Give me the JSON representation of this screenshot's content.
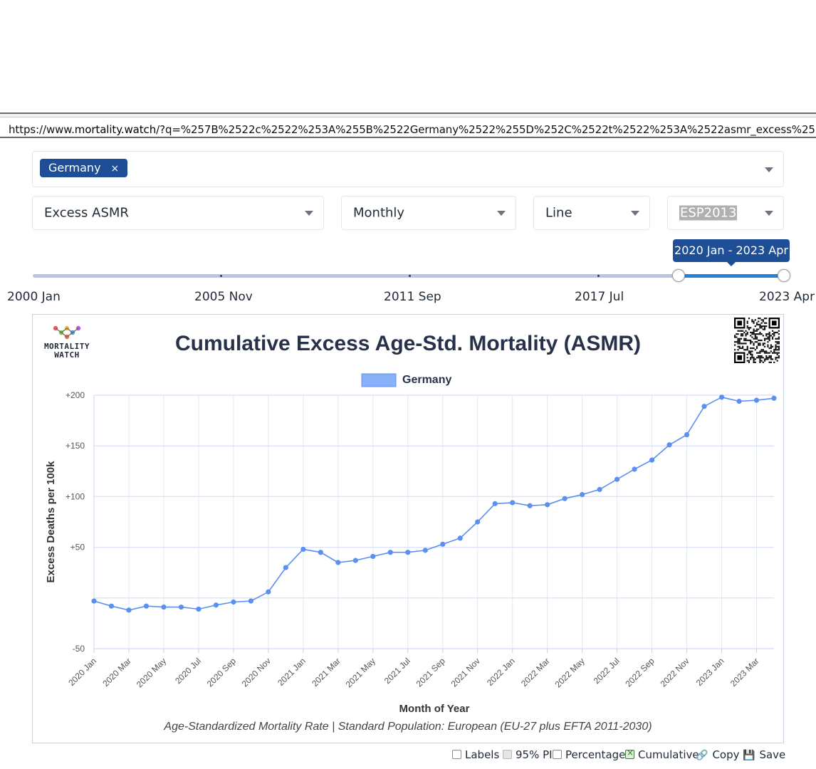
{
  "browser": {
    "url_prefix": "https://www.",
    "url_domain": "mortality.watch",
    "url_rest": "/?q=%257B%2522c%2522%253A%255B%2522Germany%2522%255D%252C%2522t%2522%253A%2522asmr_excess%2522%252C%25"
  },
  "controls": {
    "country_chip": "Germany",
    "chip_remove": "×",
    "metric": "Excess ASMR",
    "period": "Monthly",
    "chart_type": "Line",
    "standard_population": "ESP2013"
  },
  "slider": {
    "tooltip": "2020 Jan - 2023 Apr",
    "labels": [
      "2000 Jan",
      "2005 Nov",
      "2011 Sep",
      "2017 Jul",
      "2023 Apr"
    ],
    "range_fraction": [
      0.8606,
      1.0
    ],
    "colors": {
      "track": "#bac4e8",
      "selected": "#2380e0"
    }
  },
  "logo": {
    "line1": "MORTALITY",
    "line2": "WATCH"
  },
  "chart_data": {
    "type": "line",
    "title": "Cumulative Excess Age-Std. Mortality (ASMR)",
    "subtitle": "Age-Standardized Mortality Rate | Standard Population: European (EU-27 plus EFTA 2011-2030)",
    "xlabel": "Month of Year",
    "ylabel": "Excess Deaths per 100k",
    "legend": {
      "position": "top-center"
    },
    "ylim": [
      -50,
      200
    ],
    "yticks": [
      {
        "value": 200,
        "label": "+200"
      },
      {
        "value": 150,
        "label": "+150"
      },
      {
        "value": 100,
        "label": "+100"
      },
      {
        "value": 50,
        "label": "+50"
      },
      {
        "value": 0,
        "label": ""
      },
      {
        "value": -50,
        "label": "-50"
      }
    ],
    "x": [
      "2020 Jan",
      "2020 Feb",
      "2020 Mar",
      "2020 Apr",
      "2020 May",
      "2020 Jun",
      "2020 Jul",
      "2020 Aug",
      "2020 Sep",
      "2020 Oct",
      "2020 Nov",
      "2020 Dec",
      "2021 Jan",
      "2021 Feb",
      "2021 Mar",
      "2021 Apr",
      "2021 May",
      "2021 Jun",
      "2021 Jul",
      "2021 Aug",
      "2021 Sep",
      "2021 Oct",
      "2021 Nov",
      "2021 Dec",
      "2022 Jan",
      "2022 Feb",
      "2022 Mar",
      "2022 Apr",
      "2022 May",
      "2022 Jun",
      "2022 Jul",
      "2022 Aug",
      "2022 Sep",
      "2022 Oct",
      "2022 Nov",
      "2022 Dec",
      "2023 Jan",
      "2023 Feb",
      "2023 Mar",
      "2023 Apr"
    ],
    "x_tick_labels": [
      "2020 Jan",
      "2020 Mar",
      "2020 May",
      "2020 Jul",
      "2020 Sep",
      "2020 Nov",
      "2021 Jan",
      "2021 Mar",
      "2021 May",
      "2021 Jul",
      "2021 Sep",
      "2021 Nov",
      "2022 Jan",
      "2022 Mar",
      "2022 May",
      "2022 Jul",
      "2022 Sep",
      "2022 Nov",
      "2023 Jan",
      "2023 Mar"
    ],
    "grid": true,
    "series": [
      {
        "name": "Germany",
        "color": "#5b8ff0",
        "values": [
          -3,
          -8,
          -12,
          -8,
          -9,
          -9,
          -11,
          -7,
          -4,
          -3,
          6,
          30,
          48,
          45,
          35,
          37,
          41,
          45,
          45,
          47,
          53,
          59,
          75,
          93,
          94,
          91,
          92,
          98,
          102,
          107,
          117,
          127,
          136,
          151,
          161,
          189,
          198,
          194,
          195,
          197
        ]
      }
    ]
  },
  "options": {
    "labels": "Labels",
    "pi": "95% PI",
    "percentage": "Percentage",
    "cumulative": "Cumulative",
    "copy": "Copy",
    "save": "Save"
  }
}
